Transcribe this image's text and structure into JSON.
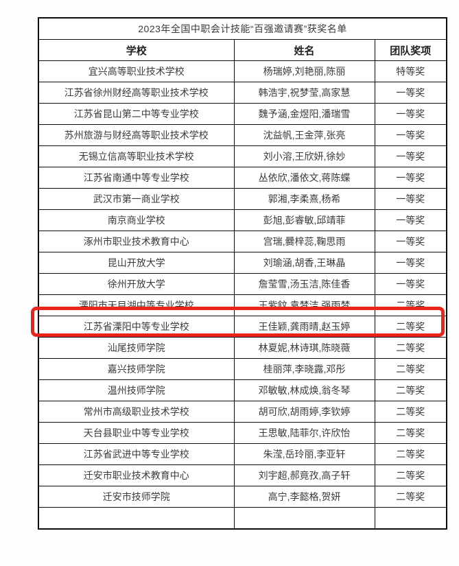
{
  "page": {
    "title": "2023年全国中职会计技能“百强邀请赛”获奖名单"
  },
  "table": {
    "headers": [
      "学校",
      "姓名",
      "团队奖项"
    ],
    "rows": [
      {
        "school": "宜兴高等职业技术学校",
        "names": "杨瑞婷,刘艳丽,陈丽",
        "award": "特等奖",
        "highlighted": false
      },
      {
        "school": "江苏省徐州财经高等职业技术学校",
        "names": "韩浩宇,祝梦莹,高家慧",
        "award": "一等奖",
        "highlighted": false
      },
      {
        "school": "江苏省昆山第二中等专业学校",
        "names": "魏予涵,金煜阳,潘瑞雪",
        "award": "一等奖",
        "highlighted": false
      },
      {
        "school": "苏州旅游与财经高等职业技术学校",
        "names": "沈益帆,王金萍,张亮",
        "award": "一等奖",
        "highlighted": false
      },
      {
        "school": "无锡立信高等职业技术学校",
        "names": "刘小溶,王欣妍,徐妙",
        "award": "一等奖",
        "highlighted": false
      },
      {
        "school": "江苏省南通中等专业学校",
        "names": "丛依欣,潘依文,蒋陈蝶",
        "award": "一等奖",
        "highlighted": false
      },
      {
        "school": "武汉市第一商业学校",
        "names": "郭湘,李柔熹,杨希",
        "award": "一等奖",
        "highlighted": false
      },
      {
        "school": "南京商业学校",
        "names": "彭旭,彭睿敏,邱靖菲",
        "award": "一等奖",
        "highlighted": false
      },
      {
        "school": "涿州市职业技术教育中心",
        "names": "宫瑞,爨梓蕊,鞠思雨",
        "award": "一等奖",
        "highlighted": false
      },
      {
        "school": "昆山开放大学",
        "names": "刘瑜涵,胡香,王琳晶",
        "award": "一等奖",
        "highlighted": false
      },
      {
        "school": "徐州开放大学",
        "names": "詹莹雪,汤玉洁,陈佳香",
        "award": "一等奖",
        "highlighted": true
      },
      {
        "school": "溧阳市天目湖中等专业学校",
        "names": "王紫鈫,袁梦洁,强雨梦",
        "award": "二等奖",
        "highlighted": false
      },
      {
        "school": "江苏省溧阳中等专业学校",
        "names": "王佳颖,龚雨晴,赵玉婷",
        "award": "二等奖",
        "highlighted": false
      },
      {
        "school": "汕尾技师学院",
        "names": "林夏妮,林诗琪,陈晓薇",
        "award": "二等奖",
        "highlighted": false
      },
      {
        "school": "嘉兴技师学院",
        "names": "桂丽萍,李晓露,邓彤",
        "award": "二等奖",
        "highlighted": false
      },
      {
        "school": "温州技师学院",
        "names": "邓敏敏,林成焕,翁冬琴",
        "award": "二等奖",
        "highlighted": false
      },
      {
        "school": "常州市高级职业技术学校",
        "names": "胡可欣,胡雨婷,李钦婷",
        "award": "二等奖",
        "highlighted": false
      },
      {
        "school": "天台县职业中等专业学校",
        "names": "王思敏,陆菲尔,许欣怡",
        "award": "二等奖",
        "highlighted": false
      },
      {
        "school": "江苏省武进中等专业学校",
        "names": "朱滢,岳玲丽,李亚轩",
        "award": "二等奖",
        "highlighted": false
      },
      {
        "school": "迁安市职业技术教育中心",
        "names": "刘宇超,郝竟孜,高子轩",
        "award": "二等奖",
        "highlighted": false
      },
      {
        "school": "迁安市技师学院",
        "names": "高宁,李懿格,贺妍",
        "award": "二等奖",
        "highlighted": false
      }
    ]
  },
  "highlight": {
    "color": "#e8241b",
    "highlighted_school": "徐州开放大学"
  }
}
